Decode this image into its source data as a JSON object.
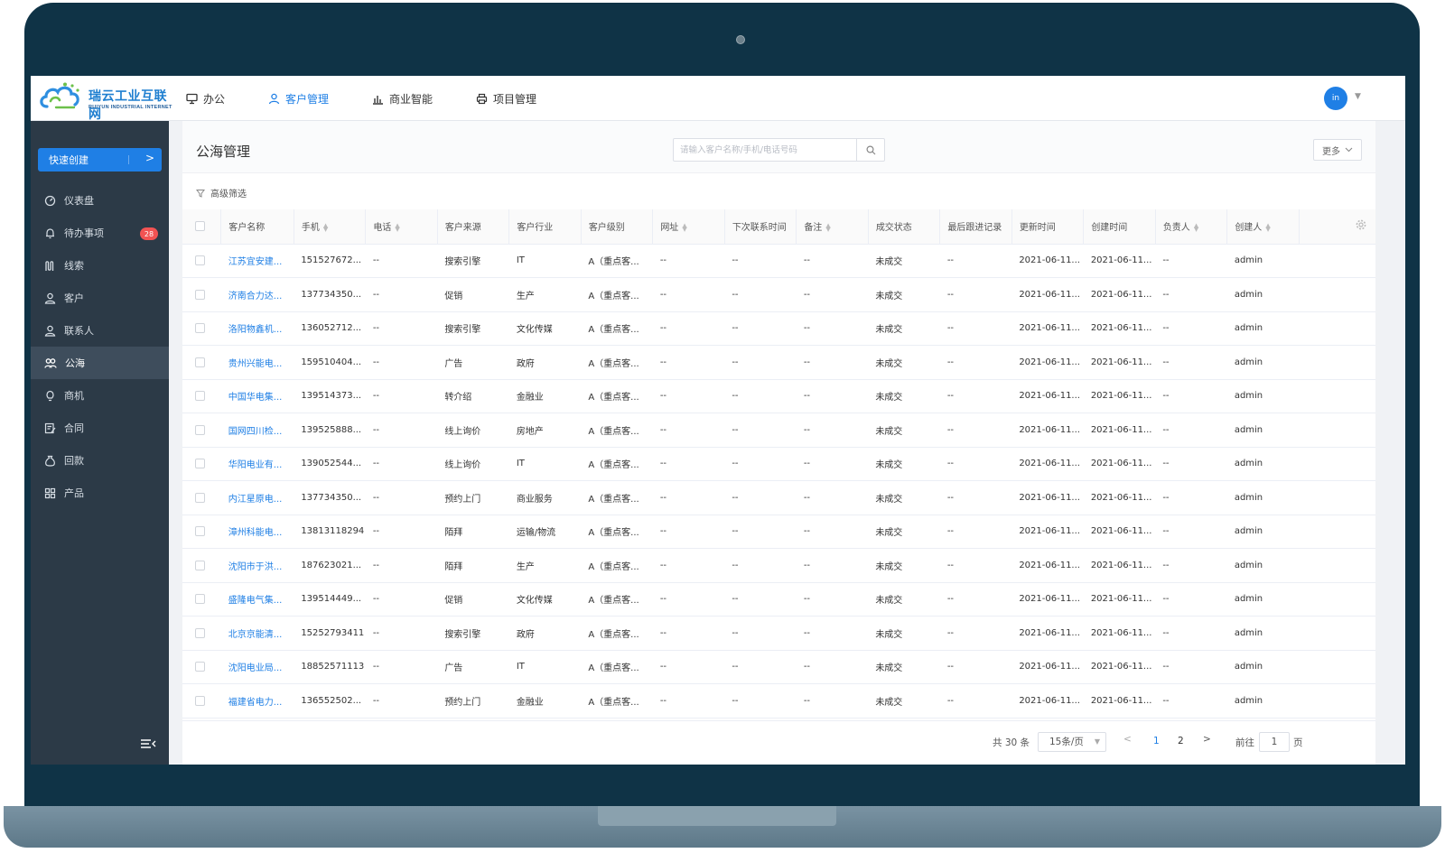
{
  "brand": {
    "name_cn": "瑞云工业互联网",
    "name_en": "RUIYUN INDUSTRIAL INTERNET"
  },
  "nav": [
    {
      "label": "办公",
      "icon": "monitor-icon",
      "active": false
    },
    {
      "label": "客户管理",
      "icon": "user-icon",
      "active": true
    },
    {
      "label": "商业智能",
      "icon": "bar-chart-icon",
      "active": false
    },
    {
      "label": "项目管理",
      "icon": "printer-icon",
      "active": false
    }
  ],
  "user": {
    "avatar_text": "in"
  },
  "sidebar": {
    "quick_create": "快速创建",
    "items": [
      {
        "label": "仪表盘",
        "icon": "dashboard-icon"
      },
      {
        "label": "待办事项",
        "icon": "bell-icon",
        "badge": "28"
      },
      {
        "label": "线索",
        "icon": "clue-icon"
      },
      {
        "label": "客户",
        "icon": "user-icon"
      },
      {
        "label": "联系人",
        "icon": "contact-icon"
      },
      {
        "label": "公海",
        "icon": "group-icon",
        "active": true
      },
      {
        "label": "商机",
        "icon": "bulb-icon"
      },
      {
        "label": "合同",
        "icon": "contract-icon"
      },
      {
        "label": "回款",
        "icon": "money-bag-icon"
      },
      {
        "label": "产品",
        "icon": "product-icon"
      }
    ]
  },
  "page": {
    "title": "公海管理",
    "search_placeholder": "请输入客户名称/手机/电话号码",
    "more_label": "更多",
    "filter_label": "高级筛选"
  },
  "table": {
    "columns": [
      "客户名称",
      "手机",
      "电话",
      "客户来源",
      "客户行业",
      "客户级别",
      "网址",
      "下次联系时间",
      "备注",
      "成交状态",
      "最后跟进记录",
      "更新时间",
      "创建时间",
      "负责人",
      "创建人"
    ],
    "sortable": [
      false,
      true,
      true,
      false,
      false,
      false,
      true,
      false,
      true,
      false,
      false,
      false,
      false,
      true,
      true
    ],
    "rows": [
      [
        "江苏宜安建...",
        "151527672...",
        "--",
        "搜索引擎",
        "IT",
        "A（重点客...",
        "--",
        "--",
        "--",
        "未成交",
        "--",
        "2021-06-11...",
        "2021-06-11...",
        "--",
        "admin"
      ],
      [
        "济南合力达...",
        "137734350...",
        "--",
        "促销",
        "生产",
        "A（重点客...",
        "--",
        "--",
        "--",
        "未成交",
        "--",
        "2021-06-11...",
        "2021-06-11...",
        "--",
        "admin"
      ],
      [
        "洛阳物鑫机...",
        "136052712...",
        "--",
        "搜索引擎",
        "文化传媒",
        "A（重点客...",
        "--",
        "--",
        "--",
        "未成交",
        "--",
        "2021-06-11...",
        "2021-06-11...",
        "--",
        "admin"
      ],
      [
        "贵州兴能电...",
        "159510404...",
        "--",
        "广告",
        "政府",
        "A（重点客...",
        "--",
        "--",
        "--",
        "未成交",
        "--",
        "2021-06-11...",
        "2021-06-11...",
        "--",
        "admin"
      ],
      [
        "中国华电集...",
        "139514373...",
        "--",
        "转介绍",
        "金融业",
        "A（重点客...",
        "--",
        "--",
        "--",
        "未成交",
        "--",
        "2021-06-11...",
        "2021-06-11...",
        "--",
        "admin"
      ],
      [
        "国网四川检...",
        "139525888...",
        "--",
        "线上询价",
        "房地产",
        "A（重点客...",
        "--",
        "--",
        "--",
        "未成交",
        "--",
        "2021-06-11...",
        "2021-06-11...",
        "--",
        "admin"
      ],
      [
        "华阳电业有...",
        "139052544...",
        "--",
        "线上询价",
        "IT",
        "A（重点客...",
        "--",
        "--",
        "--",
        "未成交",
        "--",
        "2021-06-11...",
        "2021-06-11...",
        "--",
        "admin"
      ],
      [
        "内江星原电...",
        "137734350...",
        "--",
        "预约上门",
        "商业服务",
        "A（重点客...",
        "--",
        "--",
        "--",
        "未成交",
        "--",
        "2021-06-11...",
        "2021-06-11...",
        "--",
        "admin"
      ],
      [
        "漳州科能电...",
        "13813118294",
        "--",
        "陌拜",
        "运输/物流",
        "A（重点客...",
        "--",
        "--",
        "--",
        "未成交",
        "--",
        "2021-06-11...",
        "2021-06-11...",
        "--",
        "admin"
      ],
      [
        "沈阳市于洪...",
        "187623021...",
        "--",
        "陌拜",
        "生产",
        "A（重点客...",
        "--",
        "--",
        "--",
        "未成交",
        "--",
        "2021-06-11...",
        "2021-06-11...",
        "--",
        "admin"
      ],
      [
        "盛隆电气集...",
        "139514449...",
        "--",
        "促销",
        "文化传媒",
        "A（重点客...",
        "--",
        "--",
        "--",
        "未成交",
        "--",
        "2021-06-11...",
        "2021-06-11...",
        "--",
        "admin"
      ],
      [
        "北京京能清...",
        "15252793411",
        "--",
        "搜索引擎",
        "政府",
        "A（重点客...",
        "--",
        "--",
        "--",
        "未成交",
        "--",
        "2021-06-11...",
        "2021-06-11...",
        "--",
        "admin"
      ],
      [
        "沈阳电业局...",
        "18852571113",
        "--",
        "广告",
        "IT",
        "A（重点客...",
        "--",
        "--",
        "--",
        "未成交",
        "--",
        "2021-06-11...",
        "2021-06-11...",
        "--",
        "admin"
      ],
      [
        "福建省电力...",
        "136552502...",
        "--",
        "预约上门",
        "金融业",
        "A（重点客...",
        "--",
        "--",
        "--",
        "未成交",
        "--",
        "2021-06-11...",
        "2021-06-11...",
        "--",
        "admin"
      ]
    ]
  },
  "pagination": {
    "total": "共 30 条",
    "page_size": "15条/页",
    "pages": [
      "1",
      "2"
    ],
    "current": "1",
    "goto_label": "前往",
    "goto_value": "1",
    "page_unit": "页"
  },
  "colors": {
    "accent": "#1f7fe5",
    "sidebar_bg": "#2c3a47",
    "badge": "#f25353",
    "frame": "#0f3346"
  }
}
